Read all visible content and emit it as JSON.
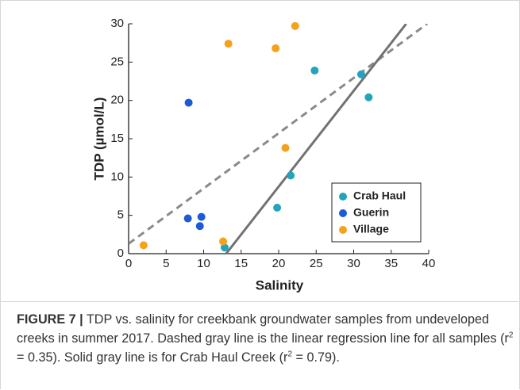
{
  "chart_data": {
    "type": "scatter",
    "xlabel": "Salinity",
    "ylabel": "TDP (µmol/L)",
    "xlim": [
      0,
      40
    ],
    "ylim": [
      0,
      30
    ],
    "xticks": [
      0,
      5,
      10,
      15,
      20,
      25,
      30,
      35,
      40
    ],
    "yticks": [
      0,
      5,
      10,
      15,
      20,
      25,
      30
    ],
    "legend": "lower right",
    "series": [
      {
        "name": "Crab Haul",
        "color": "#22a4bd",
        "x": [
          12.8,
          19.8,
          21.6,
          24.8,
          31.0,
          32.0
        ],
        "y": [
          0.8,
          6.0,
          10.2,
          23.9,
          23.4,
          20.4
        ]
      },
      {
        "name": "Guerin",
        "color": "#1e5ad8",
        "x": [
          8.0,
          7.9,
          9.7,
          9.5
        ],
        "y": [
          19.7,
          4.6,
          4.8,
          3.6
        ]
      },
      {
        "name": "Village",
        "color": "#f5a11c",
        "x": [
          2.0,
          12.6,
          13.3,
          19.6,
          22.2,
          20.9
        ],
        "y": [
          1.1,
          1.6,
          27.4,
          26.8,
          29.7,
          13.8
        ]
      }
    ],
    "lines": [
      {
        "style": "dashed",
        "color": "#8a8a8a",
        "x": [
          0,
          39.8
        ],
        "y": [
          1.3,
          30
        ]
      },
      {
        "style": "solid",
        "color": "#727272",
        "x": [
          13.0,
          37.0
        ],
        "y": [
          0,
          30
        ]
      }
    ]
  },
  "caption": {
    "label": "FIGURE 7 |",
    "parts": [
      " TDP vs. salinity for creekbank groundwater samples from undeveloped creeks in summer 2017. Dashed gray line is the linear regression line for all samples (r",
      "2",
      " = 0.35). Solid gray line is for Crab Haul Creek (r",
      "2",
      " = 0.79)."
    ]
  }
}
